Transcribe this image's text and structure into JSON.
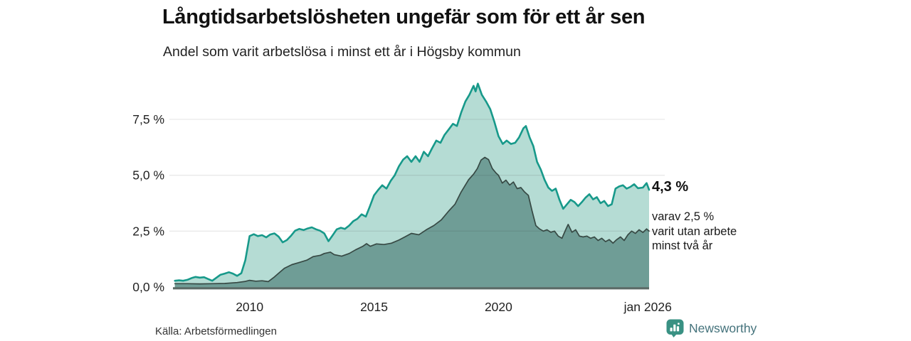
{
  "header": {
    "title": "Långtidsarbetslösheten ungefär som för ett år sen",
    "subtitle": "Andel som varit arbetslösa i minst ett år i Högsby kommun"
  },
  "annotation": {
    "value_label": "4,3 %",
    "detail_lines": [
      "varav 2,5 %",
      "varit utan arbete",
      "minst två år"
    ]
  },
  "source": {
    "label": "Källa: Arbetsförmedlingen"
  },
  "branding": {
    "name": "Newsworthy",
    "icon": "newsworthy-speech-bubble-bar-chart-icon",
    "icon_color": "#399183",
    "text_color": "#45737C"
  },
  "colors": {
    "grid": "rgba(40,40,40,0.10)",
    "axis_line": "#5C6B67",
    "tick_text": "#222222"
  },
  "chart_data": {
    "type": "area",
    "title": "Långtidsarbetslösheten ungefär som för ett år sen",
    "subtitle": "Andel som varit arbetslösa i minst ett år i Högsby kommun",
    "unit": "%",
    "x_range": [
      2006.95,
      2026.05
    ],
    "y_range": [
      0,
      9.4
    ],
    "grid": "horizontal-only",
    "legend_position": "none",
    "x_ticks": [
      {
        "t": 2010.0,
        "label": "2010"
      },
      {
        "t": 2015.0,
        "label": "2015"
      },
      {
        "t": 2020.0,
        "label": "2020"
      },
      {
        "t": 2026.0,
        "label": "jan 2026"
      }
    ],
    "y_ticks": [
      {
        "v": 0.0,
        "label": "0,0 %"
      },
      {
        "v": 2.5,
        "label": "2,5 %"
      },
      {
        "v": 5.0,
        "label": "5,0 %"
      },
      {
        "v": 7.5,
        "label": "7,5 %"
      }
    ],
    "series": [
      {
        "name": "Andel som varit arbetslösa i minst ett år",
        "stroke": "#17998A",
        "fill": "#B5DCD4",
        "stroke_width": 2.6,
        "latest_value": 4.3,
        "points": [
          [
            2007.0,
            0.28
          ],
          [
            2007.17,
            0.3
          ],
          [
            2007.33,
            0.28
          ],
          [
            2007.5,
            0.32
          ],
          [
            2007.67,
            0.4
          ],
          [
            2007.83,
            0.45
          ],
          [
            2008.0,
            0.42
          ],
          [
            2008.17,
            0.44
          ],
          [
            2008.33,
            0.36
          ],
          [
            2008.5,
            0.28
          ],
          [
            2008.67,
            0.42
          ],
          [
            2008.83,
            0.55
          ],
          [
            2009.0,
            0.6
          ],
          [
            2009.17,
            0.66
          ],
          [
            2009.33,
            0.6
          ],
          [
            2009.5,
            0.5
          ],
          [
            2009.67,
            0.62
          ],
          [
            2009.83,
            1.2
          ],
          [
            2010.0,
            2.28
          ],
          [
            2010.17,
            2.36
          ],
          [
            2010.33,
            2.28
          ],
          [
            2010.5,
            2.32
          ],
          [
            2010.67,
            2.22
          ],
          [
            2010.83,
            2.35
          ],
          [
            2011.0,
            2.4
          ],
          [
            2011.17,
            2.25
          ],
          [
            2011.33,
            2.0
          ],
          [
            2011.5,
            2.1
          ],
          [
            2011.67,
            2.3
          ],
          [
            2011.83,
            2.52
          ],
          [
            2012.0,
            2.6
          ],
          [
            2012.17,
            2.55
          ],
          [
            2012.33,
            2.62
          ],
          [
            2012.5,
            2.67
          ],
          [
            2012.67,
            2.58
          ],
          [
            2012.83,
            2.52
          ],
          [
            2013.0,
            2.4
          ],
          [
            2013.17,
            2.05
          ],
          [
            2013.33,
            2.3
          ],
          [
            2013.5,
            2.58
          ],
          [
            2013.67,
            2.65
          ],
          [
            2013.83,
            2.6
          ],
          [
            2014.0,
            2.75
          ],
          [
            2014.17,
            2.95
          ],
          [
            2014.33,
            3.05
          ],
          [
            2014.5,
            3.25
          ],
          [
            2014.67,
            3.15
          ],
          [
            2014.83,
            3.6
          ],
          [
            2015.0,
            4.1
          ],
          [
            2015.17,
            4.35
          ],
          [
            2015.33,
            4.55
          ],
          [
            2015.5,
            4.4
          ],
          [
            2015.67,
            4.75
          ],
          [
            2015.83,
            5.0
          ],
          [
            2016.0,
            5.4
          ],
          [
            2016.17,
            5.7
          ],
          [
            2016.33,
            5.85
          ],
          [
            2016.5,
            5.6
          ],
          [
            2016.67,
            5.85
          ],
          [
            2016.83,
            5.6
          ],
          [
            2017.0,
            6.05
          ],
          [
            2017.17,
            5.85
          ],
          [
            2017.33,
            6.2
          ],
          [
            2017.5,
            6.55
          ],
          [
            2017.67,
            6.45
          ],
          [
            2017.83,
            6.8
          ],
          [
            2018.0,
            7.05
          ],
          [
            2018.17,
            7.3
          ],
          [
            2018.33,
            7.2
          ],
          [
            2018.5,
            7.8
          ],
          [
            2018.67,
            8.3
          ],
          [
            2018.83,
            8.6
          ],
          [
            2019.0,
            9.0
          ],
          [
            2019.08,
            8.75
          ],
          [
            2019.17,
            9.1
          ],
          [
            2019.33,
            8.6
          ],
          [
            2019.5,
            8.3
          ],
          [
            2019.67,
            7.95
          ],
          [
            2019.83,
            7.4
          ],
          [
            2020.0,
            6.75
          ],
          [
            2020.17,
            6.4
          ],
          [
            2020.33,
            6.55
          ],
          [
            2020.5,
            6.4
          ],
          [
            2020.67,
            6.45
          ],
          [
            2020.83,
            6.7
          ],
          [
            2021.0,
            7.1
          ],
          [
            2021.1,
            7.2
          ],
          [
            2021.25,
            6.7
          ],
          [
            2021.4,
            6.3
          ],
          [
            2021.55,
            5.6
          ],
          [
            2021.7,
            5.25
          ],
          [
            2021.85,
            4.8
          ],
          [
            2022.0,
            4.45
          ],
          [
            2022.15,
            4.3
          ],
          [
            2022.3,
            4.4
          ],
          [
            2022.45,
            3.9
          ],
          [
            2022.6,
            3.5
          ],
          [
            2022.75,
            3.7
          ],
          [
            2022.9,
            3.9
          ],
          [
            2023.05,
            3.8
          ],
          [
            2023.2,
            3.62
          ],
          [
            2023.35,
            3.8
          ],
          [
            2023.5,
            4.0
          ],
          [
            2023.65,
            4.15
          ],
          [
            2023.8,
            3.92
          ],
          [
            2023.95,
            4.02
          ],
          [
            2024.1,
            3.75
          ],
          [
            2024.25,
            3.85
          ],
          [
            2024.4,
            3.62
          ],
          [
            2024.55,
            3.7
          ],
          [
            2024.7,
            4.4
          ],
          [
            2024.85,
            4.5
          ],
          [
            2025.0,
            4.55
          ],
          [
            2025.15,
            4.4
          ],
          [
            2025.3,
            4.48
          ],
          [
            2025.45,
            4.6
          ],
          [
            2025.6,
            4.42
          ],
          [
            2025.8,
            4.45
          ],
          [
            2025.95,
            4.65
          ],
          [
            2026.05,
            4.35
          ]
        ]
      },
      {
        "name": "varav varit utan arbete minst två år",
        "stroke": "#374944",
        "fill": "#6F9D96",
        "stroke_width": 1.7,
        "latest_value": 2.5,
        "points": [
          [
            2007.0,
            0.15
          ],
          [
            2007.5,
            0.15
          ],
          [
            2008.0,
            0.14
          ],
          [
            2008.5,
            0.15
          ],
          [
            2009.0,
            0.16
          ],
          [
            2009.5,
            0.2
          ],
          [
            2009.83,
            0.25
          ],
          [
            2010.0,
            0.3
          ],
          [
            2010.25,
            0.26
          ],
          [
            2010.5,
            0.28
          ],
          [
            2010.75,
            0.24
          ],
          [
            2011.0,
            0.45
          ],
          [
            2011.17,
            0.62
          ],
          [
            2011.4,
            0.84
          ],
          [
            2011.7,
            1.0
          ],
          [
            2012.0,
            1.1
          ],
          [
            2012.3,
            1.2
          ],
          [
            2012.55,
            1.36
          ],
          [
            2012.85,
            1.42
          ],
          [
            2013.0,
            1.5
          ],
          [
            2013.25,
            1.56
          ],
          [
            2013.4,
            1.45
          ],
          [
            2013.7,
            1.38
          ],
          [
            2014.0,
            1.5
          ],
          [
            2014.25,
            1.66
          ],
          [
            2014.55,
            1.82
          ],
          [
            2014.7,
            1.94
          ],
          [
            2014.85,
            1.82
          ],
          [
            2015.1,
            1.93
          ],
          [
            2015.4,
            1.9
          ],
          [
            2015.7,
            1.96
          ],
          [
            2016.0,
            2.1
          ],
          [
            2016.25,
            2.25
          ],
          [
            2016.5,
            2.4
          ],
          [
            2016.8,
            2.34
          ],
          [
            2017.1,
            2.56
          ],
          [
            2017.4,
            2.75
          ],
          [
            2017.7,
            3.0
          ],
          [
            2018.0,
            3.4
          ],
          [
            2018.25,
            3.7
          ],
          [
            2018.5,
            4.25
          ],
          [
            2018.8,
            4.8
          ],
          [
            2019.0,
            5.05
          ],
          [
            2019.15,
            5.3
          ],
          [
            2019.3,
            5.68
          ],
          [
            2019.45,
            5.8
          ],
          [
            2019.6,
            5.7
          ],
          [
            2019.75,
            5.3
          ],
          [
            2019.9,
            5.1
          ],
          [
            2020.0,
            5.0
          ],
          [
            2020.15,
            4.65
          ],
          [
            2020.3,
            4.78
          ],
          [
            2020.45,
            4.56
          ],
          [
            2020.6,
            4.7
          ],
          [
            2020.75,
            4.4
          ],
          [
            2020.9,
            4.45
          ],
          [
            2021.05,
            4.25
          ],
          [
            2021.2,
            4.1
          ],
          [
            2021.35,
            3.4
          ],
          [
            2021.5,
            2.75
          ],
          [
            2021.65,
            2.6
          ],
          [
            2021.8,
            2.5
          ],
          [
            2021.95,
            2.56
          ],
          [
            2022.1,
            2.45
          ],
          [
            2022.25,
            2.5
          ],
          [
            2022.4,
            2.28
          ],
          [
            2022.55,
            2.18
          ],
          [
            2022.7,
            2.56
          ],
          [
            2022.8,
            2.8
          ],
          [
            2022.95,
            2.45
          ],
          [
            2023.1,
            2.56
          ],
          [
            2023.25,
            2.28
          ],
          [
            2023.4,
            2.24
          ],
          [
            2023.55,
            2.28
          ],
          [
            2023.7,
            2.18
          ],
          [
            2023.85,
            2.24
          ],
          [
            2024.0,
            2.08
          ],
          [
            2024.15,
            2.18
          ],
          [
            2024.3,
            2.03
          ],
          [
            2024.45,
            2.12
          ],
          [
            2024.6,
            1.96
          ],
          [
            2024.75,
            2.12
          ],
          [
            2024.9,
            2.24
          ],
          [
            2025.05,
            2.08
          ],
          [
            2025.2,
            2.34
          ],
          [
            2025.35,
            2.5
          ],
          [
            2025.5,
            2.4
          ],
          [
            2025.65,
            2.56
          ],
          [
            2025.8,
            2.44
          ],
          [
            2025.95,
            2.6
          ],
          [
            2026.05,
            2.5
          ]
        ]
      }
    ]
  }
}
